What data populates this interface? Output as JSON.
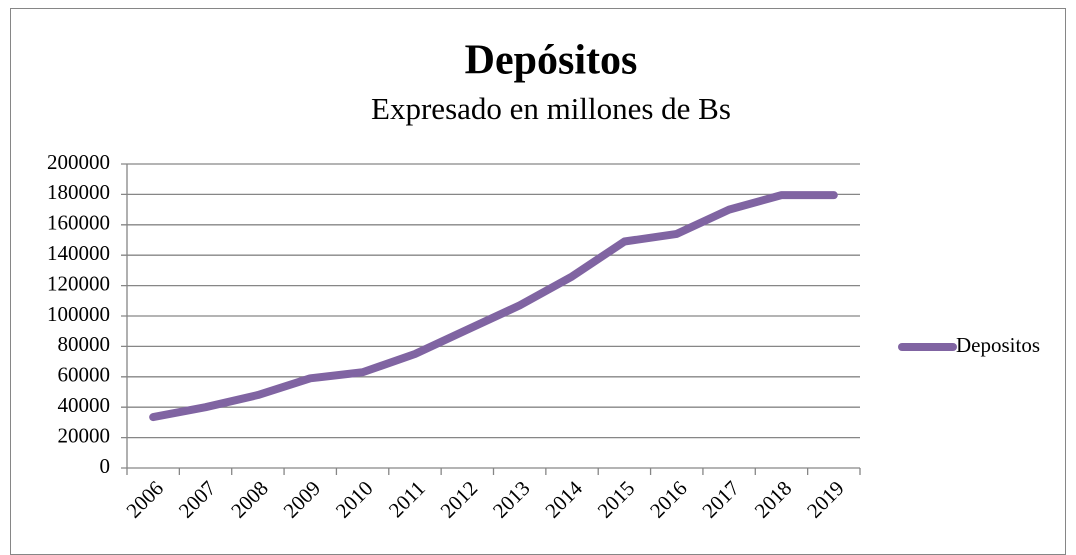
{
  "chart_data": {
    "type": "line",
    "title": "Depósitos",
    "subtitle": "Expresado en millones de Bs",
    "categories": [
      "2006",
      "2007",
      "2008",
      "2009",
      "2010",
      "2011",
      "2012",
      "2013",
      "2014",
      "2015",
      "2016",
      "2017",
      "2018",
      "2019"
    ],
    "series": [
      {
        "name": "Depositos",
        "color": "#8064a2",
        "values": [
          33500,
          40000,
          48000,
          59000,
          63000,
          75000,
          91000,
          107000,
          126000,
          149000,
          154000,
          170000,
          179500,
          179500
        ]
      }
    ],
    "ylim": [
      0,
      200000
    ],
    "yticks": [
      0,
      20000,
      40000,
      60000,
      80000,
      100000,
      120000,
      140000,
      160000,
      180000,
      200000
    ],
    "grid": true,
    "legend": "right"
  }
}
